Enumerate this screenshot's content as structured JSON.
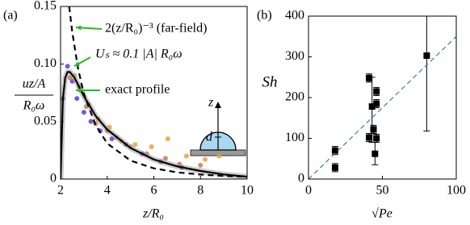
{
  "chart_data": [
    {
      "type": "line",
      "panel_label": "(a)",
      "xlabel": "z/R₀",
      "ylabel": {
        "numerator": "uz/A",
        "denominator": "R₀ω"
      },
      "xlim": [
        2,
        10
      ],
      "xticks": [
        2,
        4,
        6,
        8,
        10
      ],
      "ylim": [
        0,
        0.15
      ],
      "yticks": [
        0,
        0.05,
        {
          "value": 0.1,
          "label": "0.10"
        },
        0.15
      ],
      "series": [
        {
          "type": "scatter",
          "color": "#5b3fd6",
          "x": [
            2.1,
            2.3,
            2.5,
            2.7,
            3.0,
            3.3,
            3.7,
            4.2,
            4.8,
            5.5,
            6.3,
            7.2
          ],
          "values": [
            0.07,
            0.098,
            0.085,
            0.07,
            0.058,
            0.05,
            0.042,
            0.035,
            0.03,
            0.022,
            0.015,
            0.01
          ]
        },
        {
          "type": "scatter",
          "color": "#e8a23a",
          "x": [
            2.6,
            3.2,
            3.6,
            4.1,
            4.6,
            5.2,
            5.9,
            6.6,
            7.4,
            8.2,
            8.8
          ],
          "values": [
            0.09,
            0.065,
            0.052,
            0.045,
            0.033,
            0.03,
            0.028,
            0.035,
            0.02,
            0.017,
            0.02
          ]
        },
        {
          "type": "scatter",
          "color": "#c77a4e",
          "x": [
            2.4,
            2.8,
            3.1,
            3.5,
            4.0,
            4.4,
            5.0,
            5.7,
            6.5,
            7.1,
            8.0
          ],
          "values": [
            0.088,
            0.08,
            0.063,
            0.048,
            0.042,
            0.036,
            0.028,
            0.022,
            0.018,
            0.013,
            0.012
          ]
        },
        {
          "type": "line",
          "style": "solid",
          "name": "exact profile",
          "color": "#000000",
          "x": [
            2,
            2.1,
            2.2,
            2.3,
            2.4,
            2.6,
            2.8,
            3,
            3.5,
            4,
            5,
            6,
            7,
            8,
            9,
            10
          ],
          "values": [
            0,
            0.07,
            0.088,
            0.093,
            0.093,
            0.088,
            0.08,
            0.072,
            0.055,
            0.043,
            0.027,
            0.017,
            0.011,
            0.007,
            0.004,
            0.002
          ]
        },
        {
          "type": "line",
          "style": "dashed",
          "name": "2(z/R₀)⁻³ (far-field)",
          "color": "#000000",
          "x": [
            2.37,
            2.5,
            2.75,
            3,
            3.5,
            4,
            5,
            6,
            7,
            8,
            9,
            10
          ],
          "values": [
            0.15,
            0.128,
            0.096,
            0.074,
            0.047,
            0.031,
            0.016,
            0.0093,
            0.0058,
            0.0039,
            0.0027,
            0.002
          ]
        }
      ],
      "annotations": [
        "Uₛ ≈ 0.1 |A| R₀ω"
      ],
      "inset_labels": [
        "z",
        "d"
      ]
    },
    {
      "type": "scatter",
      "panel_label": "(b)",
      "xlabel": "√Pe",
      "ylabel": "Sh",
      "xlim": [
        0,
        100
      ],
      "xticks": [
        0,
        50,
        100
      ],
      "ylim": [
        0,
        400
      ],
      "yticks": [
        0,
        100,
        200,
        300,
        400
      ],
      "series": [
        {
          "type": "scatter",
          "color": "#000000",
          "x": [
            18,
            18,
            41,
            43,
            41,
            46,
            46,
            44,
            46,
            45,
            80
          ],
          "values": [
            70,
            28,
            248,
            178,
            102,
            215,
            185,
            122,
            100,
            62,
            303
          ],
          "ylow": [
            60,
            18,
            238,
            90,
            92,
            205,
            175,
            112,
            90,
            35,
            118
          ],
          "yhigh": [
            80,
            38,
            258,
            250,
            112,
            225,
            195,
            132,
            110,
            90,
            400
          ]
        },
        {
          "type": "line",
          "style": "dashed",
          "color": "#2f7fc1",
          "x": [
            0,
            100
          ],
          "values": [
            0,
            350
          ]
        }
      ]
    }
  ]
}
